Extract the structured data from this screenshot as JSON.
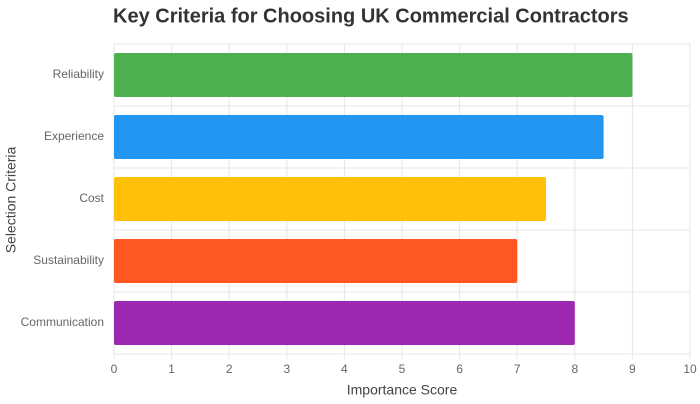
{
  "chart_data": {
    "type": "bar",
    "orientation": "horizontal",
    "title": "Key Criteria for Choosing UK Commercial Contractors",
    "xlabel": "Importance Score",
    "ylabel": "Selection Criteria",
    "categories": [
      "Reliability",
      "Experience",
      "Cost",
      "Sustainability",
      "Communication"
    ],
    "values": [
      9,
      8.5,
      7.5,
      7,
      8
    ],
    "colors": [
      "#4caf50",
      "#2196f3",
      "#ffc107",
      "#ff5722",
      "#9c27b0"
    ],
    "xlim": [
      0,
      10
    ],
    "xticks": [
      0,
      1,
      2,
      3,
      4,
      5,
      6,
      7,
      8,
      9,
      10
    ],
    "grid": true
  }
}
